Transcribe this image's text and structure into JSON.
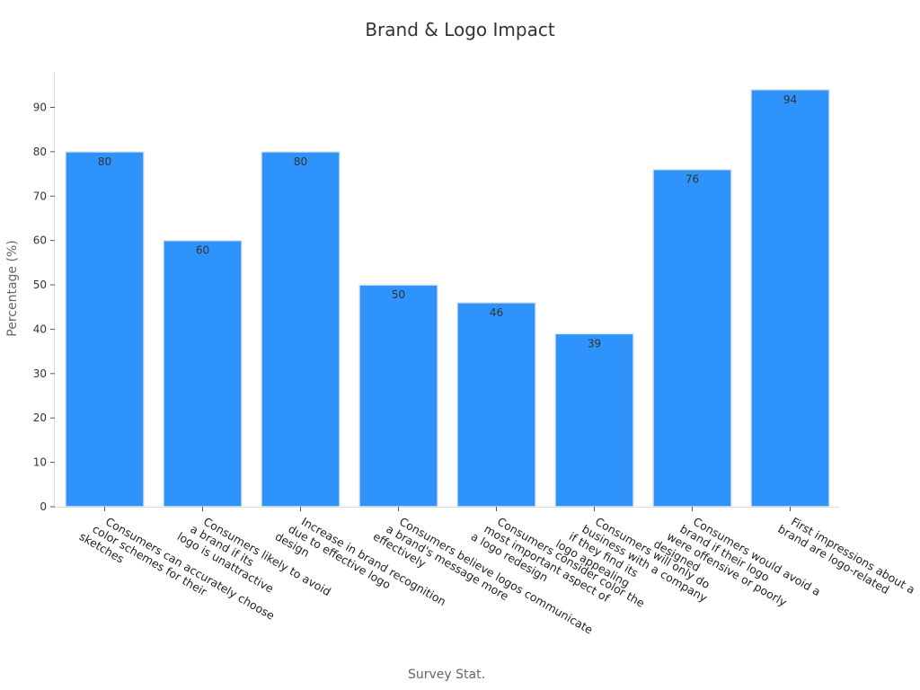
{
  "chart_data": {
    "type": "bar",
    "title": "Brand & Logo Impact",
    "xlabel": "Survey Stat.",
    "ylabel": "Percentage (%)",
    "ylim": [
      0,
      98
    ],
    "yticks": [
      0,
      10,
      20,
      30,
      40,
      50,
      60,
      70,
      80,
      90
    ],
    "grid": false,
    "bar_color": "#2e93fa",
    "categories": [
      [
        "Consumers can accurately choose",
        "color schemes for their",
        "sketches"
      ],
      [
        "Consumers likely to avoid",
        "a brand if its",
        "logo is unattractive"
      ],
      [
        "Increase in brand recognition",
        "due to effective logo",
        "design"
      ],
      [
        "Consumers believe logos communicate",
        "a brand's message more",
        "effectively"
      ],
      [
        "Consumers consider color the",
        "most important aspect of",
        "a logo redesign"
      ],
      [
        "Consumers will only do",
        "business with a company",
        "if they find its",
        "logo appealing"
      ],
      [
        "Consumers would avoid a",
        "brand if their logo",
        "were offensive or poorly",
        "designed"
      ],
      [
        "First impressions about a",
        "brand are logo-related"
      ]
    ],
    "values": [
      80,
      60,
      80,
      50,
      46,
      39,
      76,
      94
    ]
  }
}
